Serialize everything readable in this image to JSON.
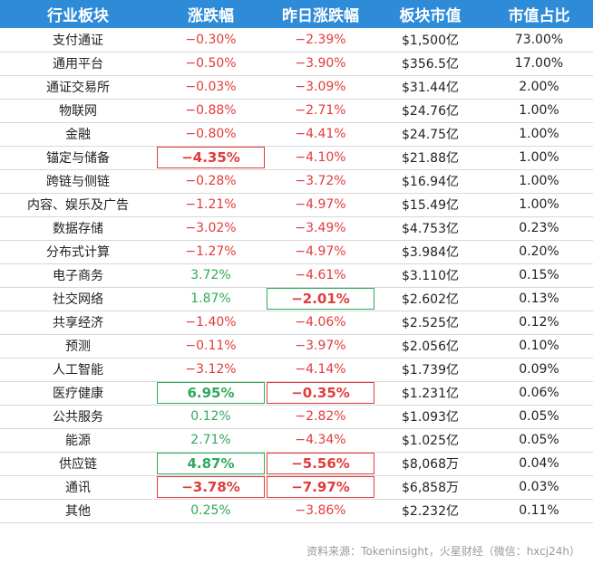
{
  "table": {
    "headers": [
      "行业板块",
      "涨跌幅",
      "昨日涨跌幅",
      "板块市值",
      "市值占比"
    ],
    "rows": [
      {
        "name": "支付通证",
        "chg": "−0.30%",
        "prev": "−2.39%",
        "cap": "$1,500亿",
        "share": "73.00%"
      },
      {
        "name": "通用平台",
        "chg": "−0.50%",
        "prev": "−3.90%",
        "cap": "$356.5亿",
        "share": "17.00%"
      },
      {
        "name": "通证交易所",
        "chg": "−0.03%",
        "prev": "−3.09%",
        "cap": "$31.44亿",
        "share": "2.00%"
      },
      {
        "name": "物联网",
        "chg": "−0.88%",
        "prev": "−2.71%",
        "cap": "$24.76亿",
        "share": "1.00%"
      },
      {
        "name": "金融",
        "chg": "−0.80%",
        "prev": "−4.41%",
        "cap": "$24.75亿",
        "share": "1.00%"
      },
      {
        "name": "锚定与储备",
        "chg": "−4.35%",
        "prev": "−4.10%",
        "cap": "$21.88亿",
        "share": "1.00%"
      },
      {
        "name": "跨链与侧链",
        "chg": "−0.28%",
        "prev": "−3.72%",
        "cap": "$16.94亿",
        "share": "1.00%"
      },
      {
        "name": "内容、娱乐及广告",
        "chg": "−1.21%",
        "prev": "−4.97%",
        "cap": "$15.49亿",
        "share": "1.00%"
      },
      {
        "name": "数据存储",
        "chg": "−3.02%",
        "prev": "−3.49%",
        "cap": "$4.753亿",
        "share": "0.23%"
      },
      {
        "name": "分布式计算",
        "chg": "−1.27%",
        "prev": "−4.97%",
        "cap": "$3.984亿",
        "share": "0.20%"
      },
      {
        "name": "电子商务",
        "chg": "3.72%",
        "prev": "−4.61%",
        "cap": "$3.110亿",
        "share": "0.15%"
      },
      {
        "name": "社交网络",
        "chg": "1.87%",
        "prev": "−2.01%",
        "cap": "$2.602亿",
        "share": "0.13%"
      },
      {
        "name": "共享经济",
        "chg": "−1.40%",
        "prev": "−4.06%",
        "cap": "$2.525亿",
        "share": "0.12%"
      },
      {
        "name": "预测",
        "chg": "−0.11%",
        "prev": "−3.97%",
        "cap": "$2.056亿",
        "share": "0.10%"
      },
      {
        "name": "人工智能",
        "chg": "−3.12%",
        "prev": "−4.14%",
        "cap": "$1.739亿",
        "share": "0.09%"
      },
      {
        "name": "医疗健康",
        "chg": "6.95%",
        "prev": "−0.35%",
        "cap": "$1.231亿",
        "share": "0.06%"
      },
      {
        "name": "公共服务",
        "chg": "0.12%",
        "prev": "−2.82%",
        "cap": "$1.093亿",
        "share": "0.05%"
      },
      {
        "name": "能源",
        "chg": "2.71%",
        "prev": "−4.34%",
        "cap": "$1.025亿",
        "share": "0.05%"
      },
      {
        "name": "供应链",
        "chg": "4.87%",
        "prev": "−5.56%",
        "cap": "$8,068万",
        "share": "0.04%"
      },
      {
        "name": "通讯",
        "chg": "−3.78%",
        "prev": "−7.97%",
        "cap": "$6,858万",
        "share": "0.03%"
      },
      {
        "name": "其他",
        "chg": "0.25%",
        "prev": "−3.86%",
        "cap": "$2.232亿",
        "share": "0.11%"
      }
    ]
  },
  "source": "资料来源：Tokeninsight，火星财经（微信：hxcj24h）",
  "colors": {
    "header_bg": "#2e8bd8",
    "negative": "#e23b3b",
    "positive": "#2faa5a"
  }
}
